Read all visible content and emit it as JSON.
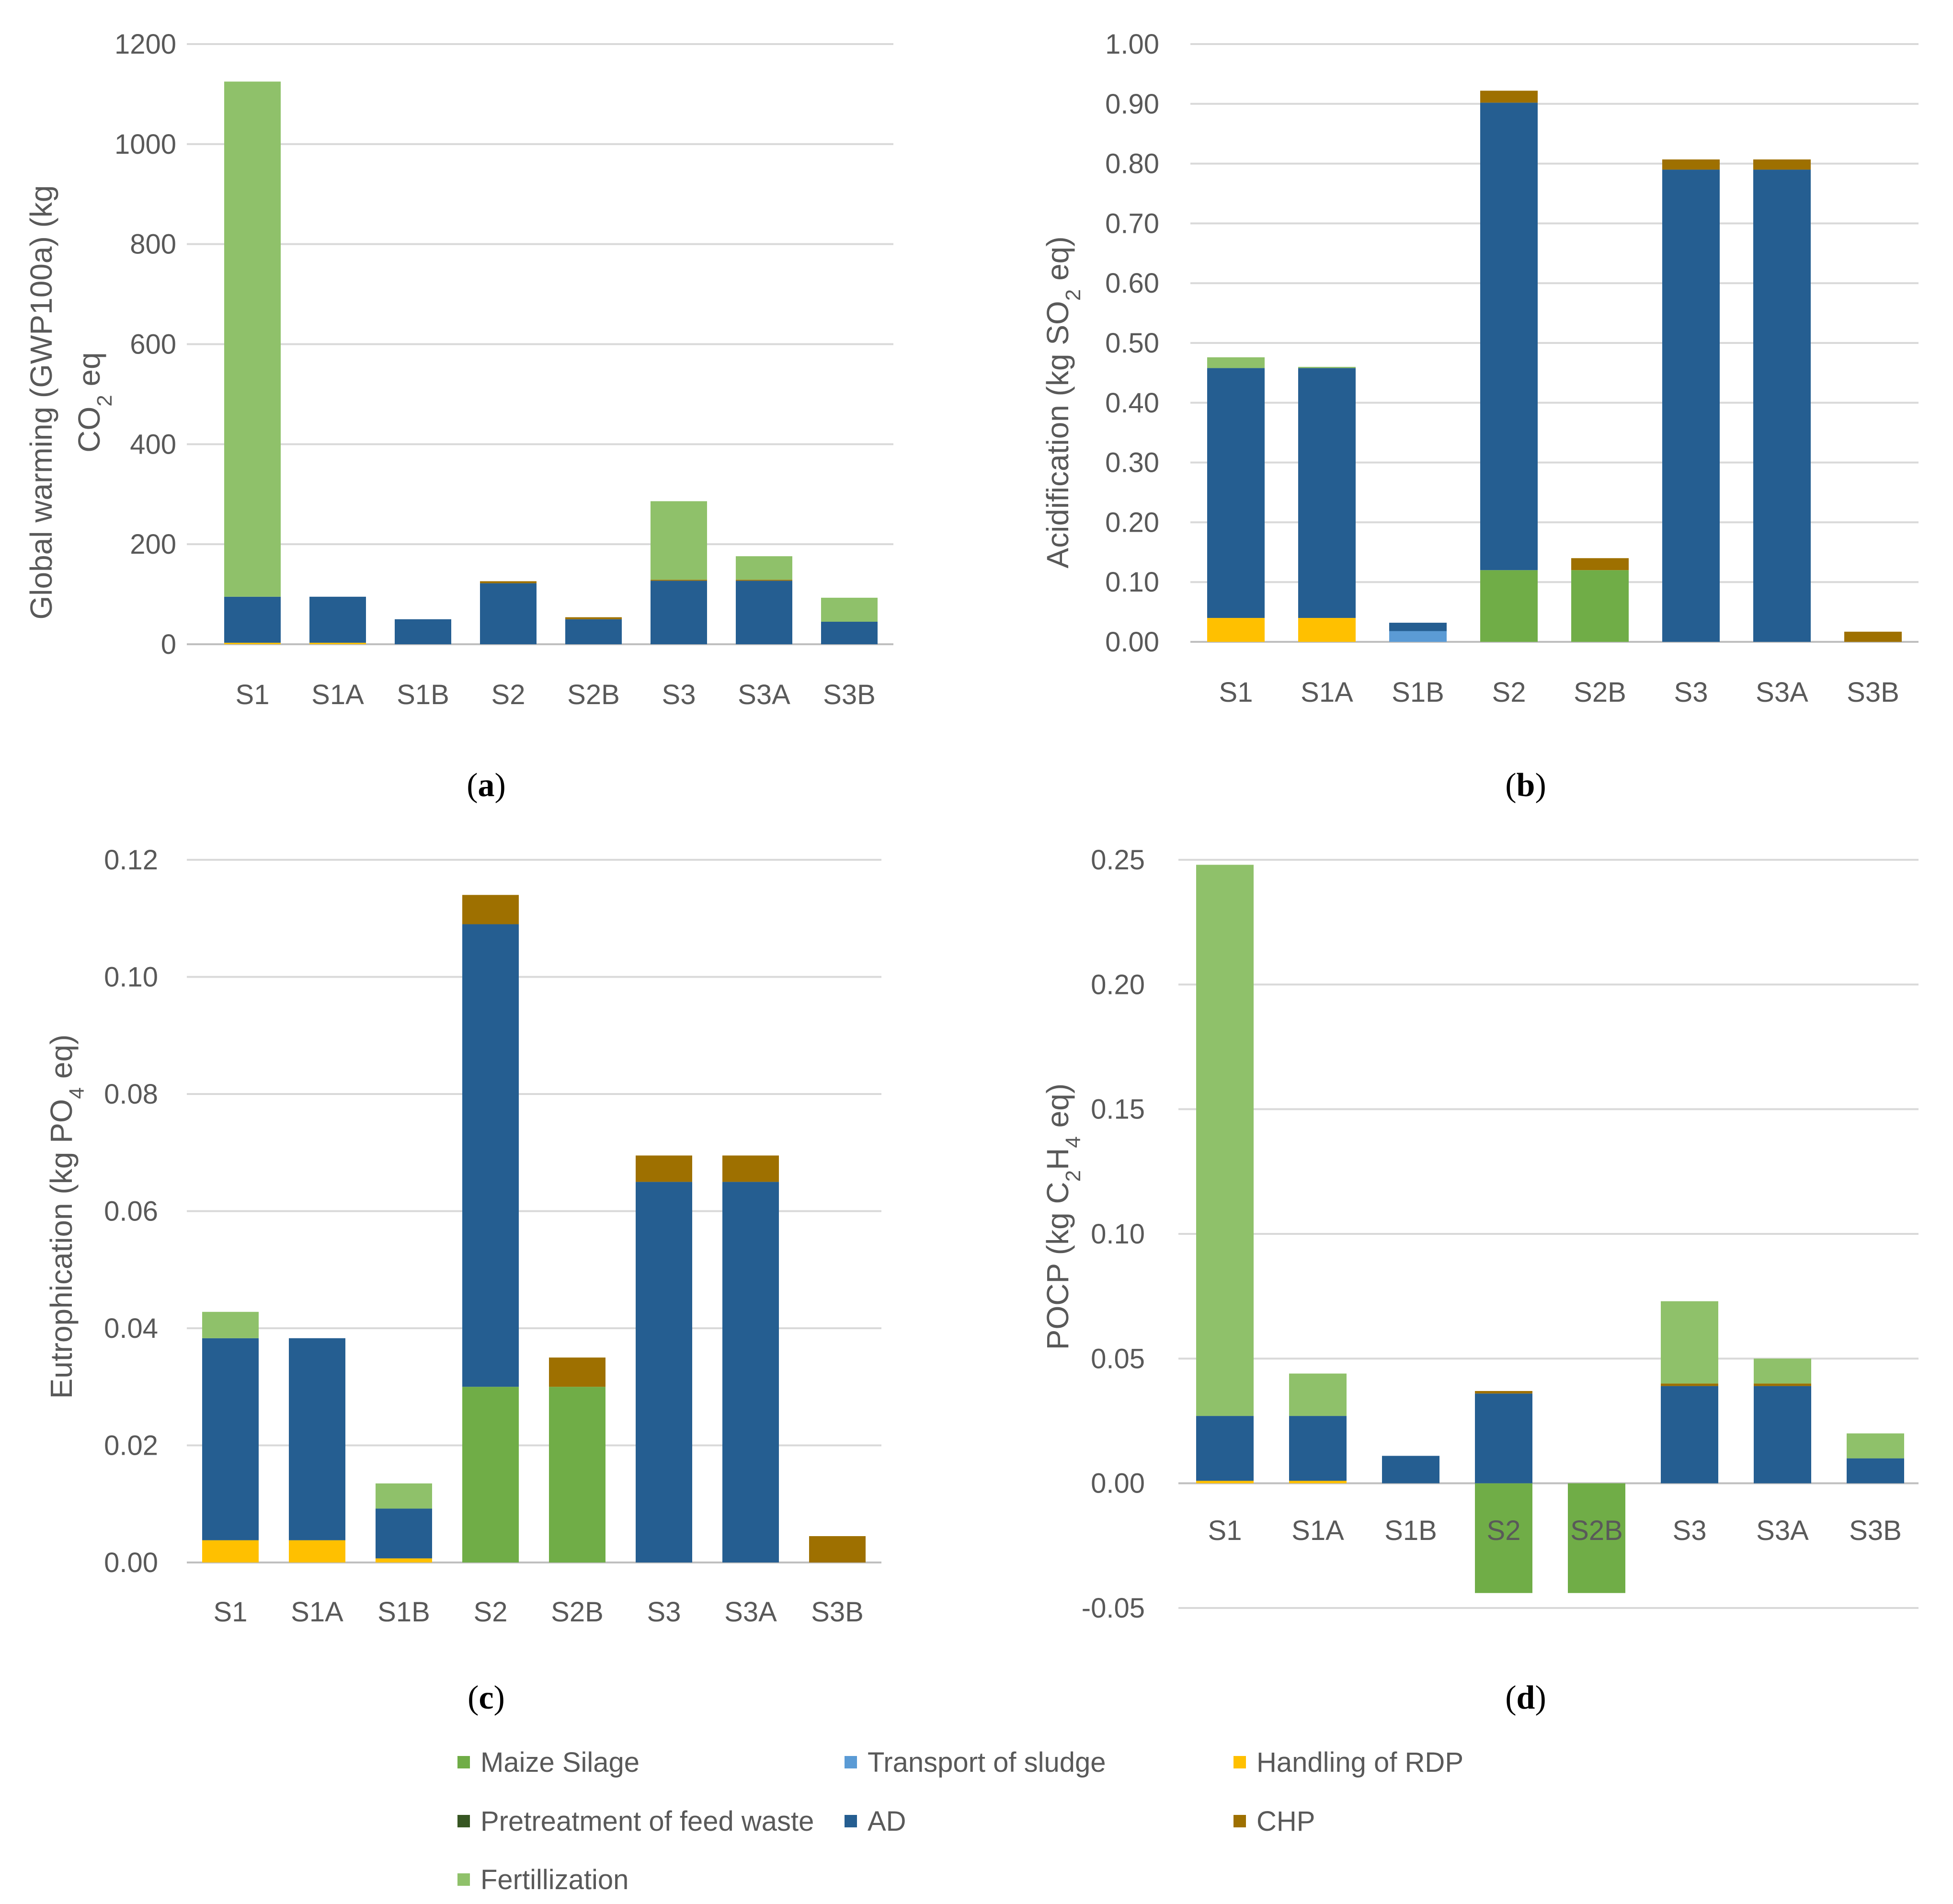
{
  "figure": {
    "colors": {
      "Maize Silage": "#70ad47",
      "Transport of sludge": "#5b9bd5",
      "Handling of RDP": "#ffc000",
      "Pretreatment of feed waste": "#375623",
      "AD": "#255e91",
      "CHP": "#9e7000",
      "Fertillization": "#8fc16a"
    },
    "legend": [
      "Maize Silage",
      "Transport of sludge",
      "Handling of RDP",
      "Pretreatment of feed waste",
      "AD",
      "CHP",
      "Fertillization"
    ],
    "panels": [
      {
        "open": "(",
        "letter": "a",
        "close": ")"
      },
      {
        "open": "(",
        "letter": "b",
        "close": ")"
      },
      {
        "open": "(",
        "letter": "c",
        "close": ")"
      },
      {
        "open": "(",
        "letter": "d",
        "close": ")"
      }
    ]
  },
  "chart_data": [
    {
      "type": "bar",
      "stacked": true,
      "title": "",
      "ylabel_line1": "Global warming (GWP100a)  (kg",
      "ylabel_line2_parts": [
        "CO",
        "2",
        " eq"
      ],
      "categories": [
        "S1",
        "S1A",
        "S1B",
        "S2",
        "S2B",
        "S3",
        "S3A",
        "S3B"
      ],
      "ylim": [
        0,
        1200
      ],
      "yticks": [
        0,
        200,
        400,
        600,
        800,
        1000,
        1200
      ],
      "ytick_labels": [
        "0",
        "200",
        "400",
        "600",
        "800",
        "1000",
        "1200"
      ],
      "series": [
        {
          "name": "Handling of RDP",
          "values": [
            3,
            3,
            0,
            0,
            0,
            0,
            0,
            0
          ]
        },
        {
          "name": "AD",
          "values": [
            92,
            92,
            50,
            122,
            50,
            127,
            127,
            45
          ]
        },
        {
          "name": "CHP",
          "values": [
            0,
            0,
            0,
            4,
            4,
            2,
            2,
            0
          ]
        },
        {
          "name": "Fertillization",
          "values": [
            1030,
            0,
            0,
            0,
            0,
            157,
            47,
            48
          ]
        }
      ]
    },
    {
      "type": "bar",
      "stacked": true,
      "title": "",
      "ylabel_parts": [
        "Acidification (kg SO",
        "2",
        " eq)"
      ],
      "categories": [
        "S1",
        "S1A",
        "S1B",
        "S2",
        "S2B",
        "S3",
        "S3A",
        "S3B"
      ],
      "ylim": [
        0,
        1.0
      ],
      "yticks": [
        0,
        0.1,
        0.2,
        0.3,
        0.4,
        0.5,
        0.6,
        0.7,
        0.8,
        0.9,
        1.0
      ],
      "ytick_labels": [
        "0.00",
        "0.10",
        "0.20",
        "0.30",
        "0.40",
        "0.50",
        "0.60",
        "0.70",
        "0.80",
        "0.90",
        "1.00"
      ],
      "series": [
        {
          "name": "Maize Silage",
          "values": [
            0,
            0,
            0,
            0.12,
            0.12,
            0,
            0,
            0
          ]
        },
        {
          "name": "Transport of sludge",
          "values": [
            0,
            0,
            0.018,
            0,
            0,
            0,
            0,
            0
          ]
        },
        {
          "name": "Handling of RDP",
          "values": [
            0.04,
            0.04,
            0,
            0,
            0,
            0,
            0,
            0
          ]
        },
        {
          "name": "AD",
          "values": [
            0.418,
            0.418,
            0.014,
            0.782,
            0,
            0.79,
            0.79,
            0
          ]
        },
        {
          "name": "CHP",
          "values": [
            0,
            0,
            0,
            0.02,
            0.02,
            0.017,
            0.017,
            0.017
          ]
        },
        {
          "name": "Fertillization",
          "values": [
            0.018,
            0.002,
            0,
            0,
            0,
            0,
            0,
            0
          ]
        }
      ]
    },
    {
      "type": "bar",
      "stacked": true,
      "title": "",
      "ylabel_parts": [
        "Eutrophication (kg PO",
        "4",
        " eq)"
      ],
      "categories": [
        "S1",
        "S1A",
        "S1B",
        "S2",
        "S2B",
        "S3",
        "S3A",
        "S3B"
      ],
      "ylim": [
        0,
        0.12
      ],
      "yticks": [
        0,
        0.02,
        0.04,
        0.06,
        0.08,
        0.1,
        0.12
      ],
      "ytick_labels": [
        "0.00",
        "0.02",
        "0.04",
        "0.06",
        "0.08",
        "0.10",
        "0.12"
      ],
      "series": [
        {
          "name": "Maize Silage",
          "values": [
            0,
            0,
            0,
            0.03,
            0.03,
            0,
            0,
            0
          ]
        },
        {
          "name": "Handling of RDP",
          "values": [
            0.0038,
            0.0038,
            0.0007,
            0,
            0,
            0,
            0,
            0
          ]
        },
        {
          "name": "AD",
          "values": [
            0.0345,
            0.0345,
            0.0085,
            0.079,
            0,
            0.065,
            0.065,
            0
          ]
        },
        {
          "name": "CHP",
          "values": [
            0,
            0,
            0,
            0.005,
            0.005,
            0.0045,
            0.0045,
            0.0045
          ]
        },
        {
          "name": "Fertillization",
          "values": [
            0.0045,
            0,
            0.0043,
            0,
            0,
            0,
            0,
            0
          ]
        }
      ]
    },
    {
      "type": "bar",
      "stacked": true,
      "title": "",
      "ylabel_parts": [
        "POCP (kg C",
        "2",
        "H",
        "4",
        " eq)"
      ],
      "categories": [
        "S1",
        "S1A",
        "S1B",
        "S2",
        "S2B",
        "S3",
        "S3A",
        "S3B"
      ],
      "ylim": [
        -0.05,
        0.25
      ],
      "yticks": [
        -0.05,
        0,
        0.05,
        0.1,
        0.15,
        0.2,
        0.25
      ],
      "ytick_labels": [
        "-0.05",
        "0.00",
        "0.05",
        "0.10",
        "0.15",
        "0.20",
        "0.25"
      ],
      "series": [
        {
          "name": "Maize Silage",
          "values": [
            0,
            0,
            0,
            -0.044,
            -0.044,
            0,
            0,
            0
          ]
        },
        {
          "name": "Handling of RDP",
          "values": [
            0.001,
            0.001,
            0,
            0,
            0,
            0,
            0,
            0
          ]
        },
        {
          "name": "AD",
          "values": [
            0.026,
            0.026,
            0.011,
            0.036,
            0,
            0.039,
            0.039,
            0.01
          ]
        },
        {
          "name": "CHP",
          "values": [
            0,
            0,
            0,
            0.001,
            0,
            0.001,
            0.001,
            0
          ]
        },
        {
          "name": "Fertillization",
          "values": [
            0.221,
            0.017,
            0,
            0,
            0,
            0.033,
            0.01,
            0.01
          ]
        }
      ]
    }
  ]
}
